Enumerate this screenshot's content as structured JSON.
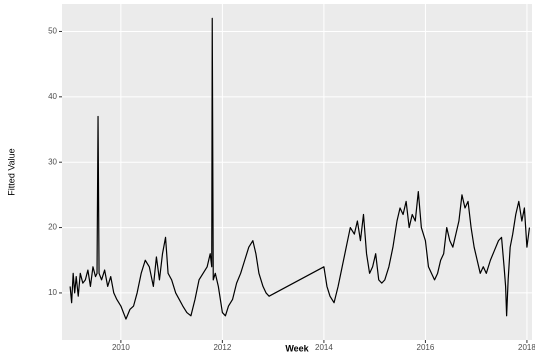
{
  "chart_data": {
    "type": "line",
    "x_label": "Week",
    "y_label": "Fitted Value",
    "x": [
      2009.0,
      2009.03,
      2009.06,
      2009.09,
      2009.12,
      2009.16,
      2009.2,
      2009.25,
      2009.3,
      2009.35,
      2009.4,
      2009.45,
      2009.5,
      2009.53,
      2009.55,
      2009.57,
      2009.62,
      2009.68,
      2009.74,
      2009.8,
      2009.86,
      2009.92,
      2010.0,
      2010.05,
      2010.1,
      2010.18,
      2010.25,
      2010.32,
      2010.4,
      2010.48,
      2010.56,
      2010.64,
      2010.7,
      2010.76,
      2010.82,
      2010.88,
      2010.93,
      2011.0,
      2011.08,
      2011.15,
      2011.22,
      2011.3,
      2011.38,
      2011.46,
      2011.54,
      2011.62,
      2011.7,
      2011.76,
      2011.79,
      2011.8,
      2011.82,
      2011.86,
      2011.92,
      2012.0,
      2012.06,
      2012.12,
      2012.2,
      2012.28,
      2012.36,
      2012.44,
      2012.52,
      2012.6,
      2012.66,
      2012.72,
      2012.8,
      2012.86,
      2012.92,
      2014.0,
      2014.06,
      2014.12,
      2014.2,
      2014.28,
      2014.36,
      2014.44,
      2014.52,
      2014.6,
      2014.66,
      2014.72,
      2014.78,
      2014.84,
      2014.9,
      2014.96,
      2015.02,
      2015.08,
      2015.14,
      2015.2,
      2015.28,
      2015.36,
      2015.44,
      2015.5,
      2015.56,
      2015.62,
      2015.68,
      2015.74,
      2015.8,
      2015.86,
      2015.92,
      2016.0,
      2016.06,
      2016.12,
      2016.18,
      2016.24,
      2016.3,
      2016.36,
      2016.42,
      2016.48,
      2016.54,
      2016.6,
      2016.66,
      2016.72,
      2016.78,
      2016.84,
      2016.9,
      2016.96,
      2017.02,
      2017.08,
      2017.14,
      2017.2,
      2017.28,
      2017.36,
      2017.44,
      2017.5,
      2017.55,
      2017.58,
      2017.6,
      2017.63,
      2017.67,
      2017.72,
      2017.78,
      2017.84,
      2017.9,
      2017.95,
      2018.0,
      2018.05
    ],
    "values": [
      11,
      8.5,
      13,
      10,
      12.5,
      9.5,
      13,
      11.5,
      12,
      13.5,
      11,
      14,
      12.5,
      13,
      37,
      13,
      12,
      13.5,
      11,
      12.5,
      10,
      9,
      8,
      7,
      6,
      7.5,
      8,
      10,
      13,
      15,
      14,
      11,
      15.5,
      12,
      16,
      18.5,
      13,
      12,
      10,
      9,
      8,
      7,
      6.5,
      9,
      12,
      13,
      14,
      16,
      14,
      52,
      12,
      13,
      11,
      7,
      6.5,
      8,
      9,
      11.5,
      13,
      15,
      17,
      18,
      16,
      13,
      11,
      10,
      9.5,
      14,
      11,
      9.5,
      8.5,
      11,
      14,
      17,
      20,
      19,
      21,
      18,
      22,
      16,
      13,
      14,
      16,
      12,
      11.5,
      12,
      14,
      17,
      21,
      23,
      22,
      24,
      20,
      22,
      21,
      25.5,
      20,
      18,
      14,
      13,
      12,
      13,
      15,
      16,
      20,
      18,
      17,
      19,
      21,
      25,
      23,
      24,
      20,
      17,
      15,
      13,
      14,
      13,
      15,
      16.5,
      18,
      18.5,
      14,
      11,
      6.5,
      12,
      17,
      19,
      22,
      24,
      21,
      23,
      17,
      20
    ],
    "color": "#000000",
    "xlim": [
      2008.84,
      2018.1
    ],
    "xticks": [
      2010,
      2012,
      2014,
      2016,
      2018
    ],
    "ylim": [
      2.8,
      54.2
    ],
    "yticks": [
      10,
      20,
      30,
      40,
      50
    ],
    "grid": true
  }
}
